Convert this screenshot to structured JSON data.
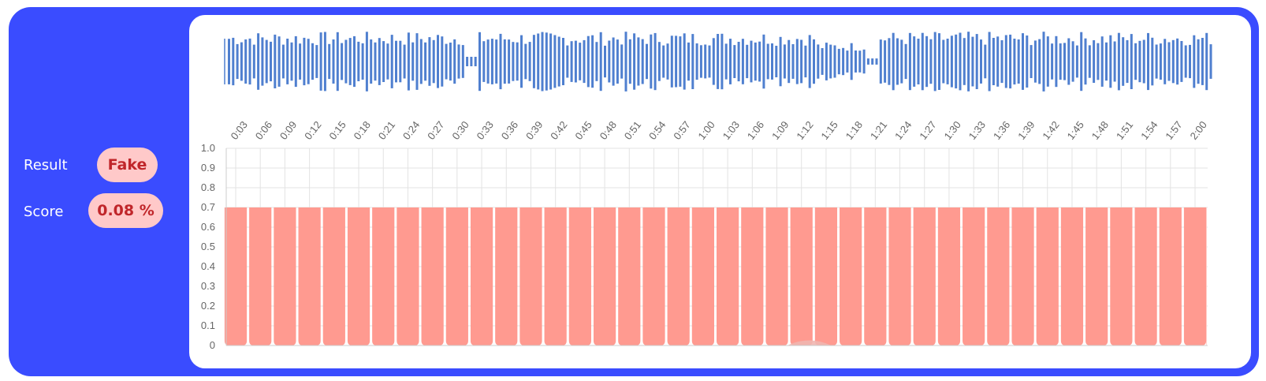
{
  "result": {
    "label": "Result",
    "value": "Fake",
    "status_color": "#c0262a",
    "badge_color": "#ffc9c9"
  },
  "score": {
    "label": "Score",
    "value": "0.08 %"
  },
  "colors": {
    "frame": "#3a4cff",
    "waveform": "#4f7fcf",
    "bar": "#ff9a90",
    "bar_edge": "#ffd4d0"
  },
  "chart_data": {
    "type": "area",
    "xlabel": "",
    "ylabel": "",
    "x": [
      "0:03",
      "0:06",
      "0:09",
      "0:12",
      "0:15",
      "0:18",
      "0:21",
      "0:24",
      "0:27",
      "0:30",
      "0:33",
      "0:36",
      "0:39",
      "0:42",
      "0:45",
      "0:48",
      "0:51",
      "0:54",
      "0:57",
      "1:00",
      "1:03",
      "1:06",
      "1:09",
      "1:12",
      "1:15",
      "1:18",
      "1:21",
      "1:24",
      "1:27",
      "1:30",
      "1:33",
      "1:36",
      "1:39",
      "1:42",
      "1:45",
      "1:48",
      "1:51",
      "1:54",
      "1:57",
      "2:00"
    ],
    "yticks": [
      "0",
      "0.1",
      "0.2",
      "0.3",
      "0.4",
      "0.5",
      "0.6",
      "0.7",
      "0.8",
      "0.9",
      "1.0"
    ],
    "ylim": [
      0,
      1.0
    ],
    "grid": true,
    "series": [
      {
        "values": [
          0.7,
          0.7,
          0.7,
          0.7,
          0.7,
          0.7,
          0.7,
          0.7,
          0.7,
          0.7,
          0.7,
          0.7,
          0.7,
          0.7,
          0.7,
          0.7,
          0.7,
          0.7,
          0.7,
          0.7,
          0.7,
          0.7,
          0.7,
          0.7,
          0.7,
          0.7,
          0.7,
          0.7,
          0.7,
          0.7,
          0.7,
          0.7,
          0.7,
          0.7,
          0.7,
          0.7,
          0.7,
          0.7,
          0.7,
          0.7
        ]
      }
    ],
    "dip": {
      "near": "1:12",
      "value": 0.02
    }
  }
}
